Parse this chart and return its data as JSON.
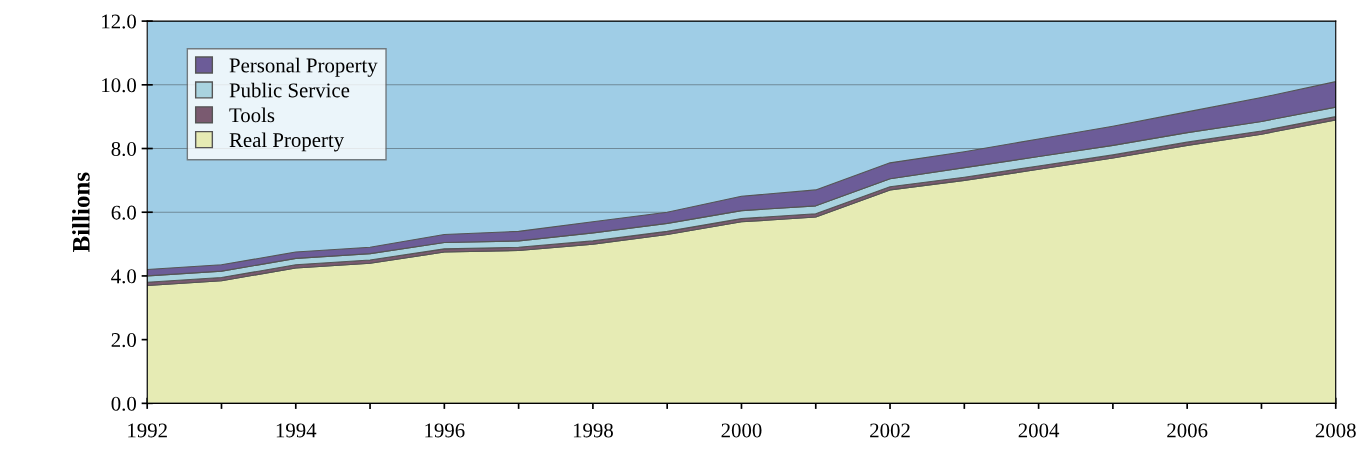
{
  "chart_data": {
    "type": "area",
    "stacked": true,
    "ylabel": "Billions",
    "x": [
      1992,
      1993,
      1994,
      1995,
      1996,
      1997,
      1998,
      1999,
      2000,
      2001,
      2002,
      2003,
      2004,
      2005,
      2006,
      2007,
      2008
    ],
    "series": [
      {
        "name": "Real Property",
        "color": "#e6ebb4",
        "values": [
          3.7,
          3.85,
          4.25,
          4.4,
          4.75,
          4.8,
          5.0,
          5.3,
          5.7,
          5.85,
          6.7,
          7.0,
          7.35,
          7.7,
          8.1,
          8.45,
          8.9
        ]
      },
      {
        "name": "Tools",
        "color": "#7a5a70",
        "values": [
          0.1,
          0.1,
          0.1,
          0.1,
          0.1,
          0.1,
          0.1,
          0.1,
          0.1,
          0.1,
          0.1,
          0.1,
          0.1,
          0.1,
          0.1,
          0.1,
          0.1
        ]
      },
      {
        "name": "Public Service",
        "color": "#a9d3df",
        "values": [
          0.2,
          0.2,
          0.2,
          0.2,
          0.2,
          0.2,
          0.25,
          0.25,
          0.25,
          0.25,
          0.25,
          0.3,
          0.3,
          0.3,
          0.3,
          0.3,
          0.3
        ]
      },
      {
        "name": "Personal Property",
        "color": "#6c5c98",
        "values": [
          0.2,
          0.2,
          0.2,
          0.2,
          0.25,
          0.3,
          0.35,
          0.35,
          0.45,
          0.5,
          0.5,
          0.5,
          0.55,
          0.6,
          0.65,
          0.75,
          0.8
        ]
      }
    ],
    "xlim": [
      1992,
      2008
    ],
    "xticks": [
      1992,
      {
        "value": 1993,
        "label": null
      },
      1994,
      {
        "value": 1995,
        "label": null
      },
      1996,
      {
        "value": 1997,
        "label": null
      },
      1998,
      {
        "value": 1999,
        "label": null
      },
      2000,
      {
        "value": 2001,
        "label": null
      },
      2002,
      {
        "value": 2003,
        "label": null
      },
      2004,
      {
        "value": 2005,
        "label": null
      },
      2006,
      {
        "value": 2007,
        "label": null
      },
      2008
    ],
    "ylim": [
      0,
      12
    ],
    "yticks": [
      {
        "value": 0,
        "label": "0.0"
      },
      {
        "value": 2,
        "label": "2.0"
      },
      {
        "value": 4,
        "label": "4.0"
      },
      {
        "value": 6,
        "label": "6.0"
      },
      {
        "value": 8,
        "label": "8.0"
      },
      {
        "value": 10,
        "label": "10.0"
      },
      {
        "value": 12,
        "label": "12.0"
      }
    ],
    "bands": [
      {
        "axis": "y",
        "from": 4,
        "to": 12,
        "color": "#9fcde6"
      }
    ],
    "grid": "y",
    "legend": "top left"
  }
}
